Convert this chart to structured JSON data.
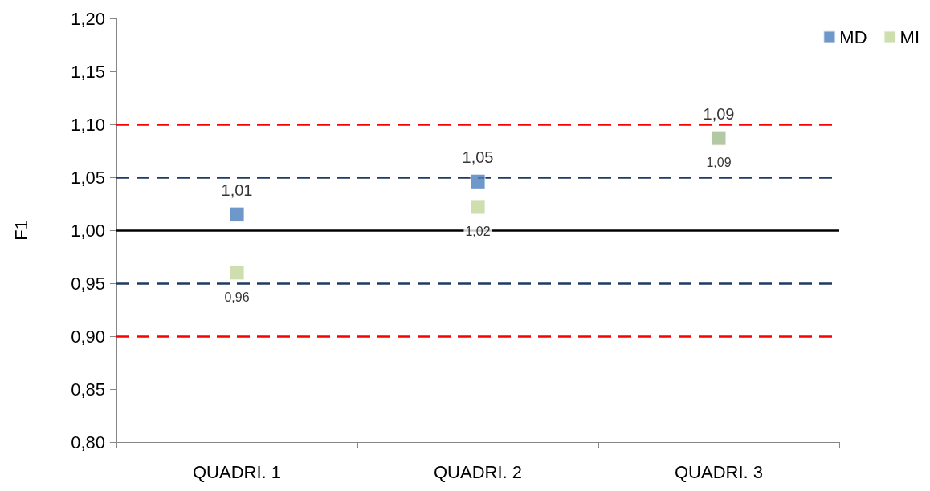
{
  "chart_data": {
    "type": "scatter",
    "ylabel": "F1",
    "categories": [
      "QUADRI. 1",
      "QUADRI. 2",
      "QUADRI. 3"
    ],
    "series": [
      {
        "name": "MD",
        "color": "#4a7ebb",
        "values": [
          1.015,
          1.046,
          1.087
        ],
        "value_labels": [
          "1,01",
          "1,05",
          "1,09"
        ]
      },
      {
        "name": "MI",
        "color": "#c3d69b",
        "values": [
          0.96,
          1.022,
          1.087
        ],
        "value_labels": [
          "0,96",
          "1,02",
          "1,09"
        ]
      }
    ],
    "ylim": [
      0.8,
      1.2
    ],
    "yticks": [
      {
        "value": 0.8,
        "label": "0,80"
      },
      {
        "value": 0.85,
        "label": "0,85"
      },
      {
        "value": 0.9,
        "label": "0,90"
      },
      {
        "value": 0.95,
        "label": "0,95"
      },
      {
        "value": 1.0,
        "label": "1,00"
      },
      {
        "value": 1.05,
        "label": "1,05"
      },
      {
        "value": 1.1,
        "label": "1,10"
      },
      {
        "value": 1.15,
        "label": "1,15"
      },
      {
        "value": 1.2,
        "label": "1,20"
      }
    ],
    "ref_lines": [
      {
        "axis": "y",
        "value": 1.1,
        "color": "#ff0000",
        "line_style": "dashed"
      },
      {
        "axis": "y",
        "value": 1.05,
        "color": "#1f3b63",
        "line_style": "dashed"
      },
      {
        "axis": "y",
        "value": 1.0,
        "color": "#000000",
        "line_style": "solid"
      },
      {
        "axis": "y",
        "value": 0.95,
        "color": "#1f3b63",
        "line_style": "dashed"
      },
      {
        "axis": "y",
        "value": 0.9,
        "color": "#ff0000",
        "line_style": "dashed"
      }
    ],
    "grid": false,
    "legend": "top right",
    "marker": "square"
  }
}
